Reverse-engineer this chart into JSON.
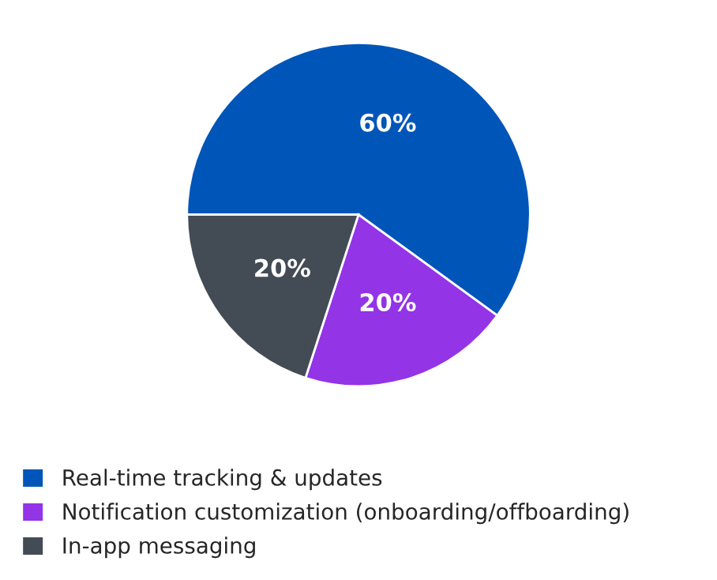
{
  "chart_data": {
    "type": "pie",
    "categories": [
      "Real-time tracking & updates",
      "Notification customization (onboarding/offboarding)",
      "In-app messaging"
    ],
    "values": [
      60,
      20,
      20
    ],
    "colors": [
      "#0056b8",
      "#9334e6",
      "#434b55"
    ],
    "value_labels": [
      "60%",
      "20%",
      "20%"
    ],
    "legend": "bottom"
  }
}
